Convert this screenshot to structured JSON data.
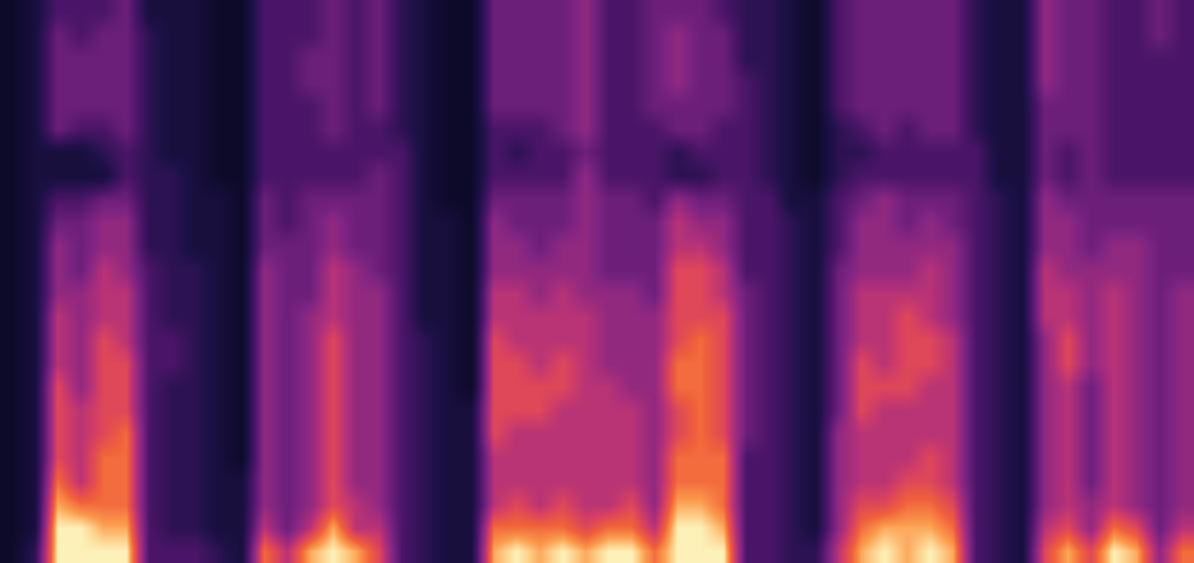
{
  "chart_data": {
    "type": "heatmap",
    "tick_labels": false,
    "zlim": [
      0,
      10
    ],
    "cells": [
      [
        0,
        0,
        0,
        0,
        0,
        0,
        0,
        0,
        0,
        0,
        0,
        0,
        0,
        0,
        0,
        0,
        0,
        0,
        0,
        0,
        0,
        0,
        0,
        0
      ],
      [
        2,
        1,
        1,
        1,
        1,
        1,
        1,
        1,
        1,
        1,
        1,
        1,
        1,
        1,
        1,
        1,
        1,
        1,
        1,
        1,
        1,
        1,
        1,
        1
      ],
      [
        10,
        10,
        9,
        8,
        7,
        7,
        7,
        7,
        6,
        6,
        6,
        5,
        5,
        5,
        4,
        3,
        1,
        1,
        4,
        4,
        4,
        4,
        4,
        3
      ],
      [
        10,
        10,
        8,
        6,
        6,
        6,
        6,
        5,
        5,
        5,
        5,
        5,
        4,
        4,
        4,
        3,
        1,
        1,
        3,
        4,
        4,
        4,
        3,
        3
      ],
      [
        10,
        9,
        8,
        8,
        8,
        7,
        7,
        7,
        7,
        7,
        6,
        6,
        6,
        5,
        5,
        4,
        1,
        2,
        3,
        4,
        4,
        4,
        4,
        3
      ],
      [
        10,
        9,
        8,
        8,
        8,
        8,
        7,
        7,
        7,
        6,
        6,
        6,
        5,
        5,
        5,
        4,
        3,
        3,
        4,
        4,
        4,
        4,
        4,
        4
      ],
      [
        3,
        3,
        3,
        3,
        3,
        3,
        3,
        3,
        3,
        3,
        3,
        3,
        3,
        2,
        2,
        2,
        2,
        2,
        2,
        2,
        2,
        2,
        2,
        1
      ],
      [
        3,
        2,
        2,
        2,
        2,
        2,
        2,
        2,
        3,
        3,
        2,
        2,
        2,
        2,
        2,
        2,
        2,
        1,
        1,
        1,
        1,
        1,
        1,
        1
      ],
      [
        3,
        2,
        2,
        2,
        2,
        2,
        2,
        2,
        2,
        2,
        2,
        2,
        2,
        1,
        1,
        1,
        1,
        1,
        1,
        1,
        1,
        1,
        1,
        1
      ],
      [
        2,
        1,
        1,
        1,
        1,
        1,
        1,
        1,
        1,
        1,
        1,
        1,
        1,
        1,
        1,
        1,
        0,
        0,
        0,
        0,
        0,
        0,
        0,
        0
      ],
      [
        1,
        1,
        1,
        1,
        0,
        0,
        0,
        0,
        0,
        0,
        0,
        0,
        0,
        0,
        0,
        0,
        0,
        0,
        0,
        0,
        0,
        0,
        0,
        0
      ],
      [
        8,
        6,
        5,
        5,
        5,
        5,
        5,
        5,
        5,
        5,
        5,
        5,
        5,
        4,
        4,
        4,
        3,
        3,
        3,
        3,
        3,
        3,
        3,
        3
      ],
      [
        6,
        4,
        4,
        4,
        4,
        4,
        4,
        4,
        4,
        4,
        4,
        4,
        4,
        4,
        3,
        3,
        3,
        3,
        3,
        3,
        3,
        3,
        3,
        3
      ],
      [
        9,
        6,
        5,
        5,
        5,
        5,
        5,
        5,
        5,
        5,
        5,
        4,
        4,
        4,
        4,
        4,
        3,
        3,
        3,
        3,
        4,
        4,
        3,
        3
      ],
      [
        10,
        9,
        7,
        7,
        7,
        7,
        7,
        7,
        7,
        7,
        6,
        6,
        6,
        5,
        5,
        4,
        3,
        3,
        4,
        4,
        4,
        4,
        4,
        4
      ],
      [
        9,
        6,
        6,
        5,
        5,
        5,
        5,
        5,
        5,
        5,
        5,
        5,
        5,
        4,
        4,
        4,
        3,
        3,
        3,
        3,
        3,
        3,
        3,
        3
      ],
      [
        7,
        6,
        5,
        5,
        5,
        5,
        5,
        5,
        5,
        5,
        5,
        5,
        4,
        4,
        4,
        4,
        4,
        3,
        3,
        4,
        4,
        4,
        4,
        4
      ],
      [
        3,
        3,
        3,
        3,
        3,
        3,
        3,
        3,
        3,
        3,
        3,
        3,
        3,
        3,
        3,
        3,
        3,
        3,
        2,
        2,
        2,
        2,
        2,
        2
      ],
      [
        2,
        2,
        2,
        2,
        2,
        2,
        2,
        2,
        2,
        2,
        1,
        1,
        1,
        1,
        1,
        1,
        1,
        1,
        1,
        1,
        1,
        1,
        1,
        1
      ],
      [
        1,
        1,
        1,
        1,
        1,
        1,
        1,
        1,
        1,
        1,
        1,
        1,
        1,
        1,
        1,
        0,
        0,
        0,
        0,
        0,
        0,
        0,
        0,
        0
      ],
      [
        1,
        1,
        1,
        1,
        1,
        1,
        1,
        0,
        0,
        0,
        0,
        0,
        0,
        0,
        0,
        0,
        0,
        0,
        0,
        0,
        0,
        0,
        0,
        0
      ],
      [
        9,
        8,
        6,
        6,
        6,
        7,
        7,
        7,
        7,
        7,
        6,
        6,
        5,
        5,
        5,
        4,
        3,
        3,
        3,
        4,
        4,
        4,
        4,
        4
      ],
      [
        10,
        8,
        7,
        6,
        6,
        6,
        7,
        7,
        7,
        6,
        6,
        6,
        5,
        5,
        4,
        4,
        3,
        2,
        3,
        4,
        4,
        4,
        4,
        4
      ],
      [
        9,
        8,
        6,
        6,
        6,
        6,
        7,
        7,
        6,
        6,
        6,
        5,
        5,
        4,
        4,
        4,
        3,
        3,
        3,
        4,
        4,
        4,
        4,
        4
      ],
      [
        10,
        8,
        7,
        6,
        6,
        6,
        6,
        7,
        7,
        6,
        6,
        6,
        5,
        5,
        4,
        4,
        3,
        3,
        4,
        4,
        4,
        4,
        4,
        4
      ],
      [
        9,
        7,
        6,
        6,
        6,
        6,
        6,
        6,
        6,
        6,
        6,
        5,
        5,
        5,
        5,
        5,
        5,
        4,
        5,
        5,
        5,
        5,
        5,
        5
      ],
      [
        10,
        8,
        6,
        6,
        6,
        6,
        6,
        6,
        5,
        5,
        5,
        5,
        4,
        4,
        4,
        4,
        3,
        3,
        3,
        3,
        3,
        3,
        3,
        3
      ],
      [
        10,
        8,
        7,
        6,
        6,
        6,
        6,
        5,
        5,
        5,
        5,
        5,
        4,
        4,
        4,
        4,
        3,
        3,
        3,
        3,
        3,
        3,
        3,
        3
      ],
      [
        8,
        6,
        5,
        5,
        5,
        5,
        5,
        5,
        5,
        5,
        5,
        4,
        4,
        4,
        4,
        3,
        3,
        3,
        3,
        4,
        4,
        4,
        4,
        4
      ],
      [
        10,
        10,
        9,
        8,
        8,
        7,
        7,
        8,
        8,
        7,
        7,
        7,
        7,
        6,
        6,
        5,
        2,
        2,
        4,
        4,
        5,
        5,
        5,
        4
      ],
      [
        10,
        10,
        9,
        8,
        8,
        8,
        8,
        8,
        8,
        8,
        7,
        7,
        7,
        6,
        5,
        4,
        2,
        3,
        4,
        4,
        4,
        4,
        4,
        4
      ],
      [
        10,
        9,
        8,
        8,
        8,
        7,
        7,
        7,
        7,
        7,
        7,
        6,
        6,
        5,
        5,
        4,
        3,
        3,
        3,
        4,
        4,
        4,
        4,
        3
      ],
      [
        3,
        3,
        3,
        3,
        3,
        4,
        4,
        4,
        4,
        4,
        4,
        4,
        3,
        3,
        3,
        3,
        3,
        3,
        3,
        3,
        3,
        2,
        2,
        2
      ],
      [
        3,
        3,
        3,
        3,
        3,
        3,
        3,
        3,
        3,
        3,
        3,
        3,
        3,
        3,
        3,
        3,
        2,
        2,
        2,
        2,
        2,
        2,
        2,
        2
      ],
      [
        2,
        2,
        2,
        2,
        2,
        2,
        2,
        2,
        2,
        2,
        2,
        2,
        2,
        2,
        2,
        1,
        1,
        1,
        1,
        1,
        1,
        1,
        1,
        1
      ],
      [
        2,
        1,
        1,
        1,
        1,
        1,
        1,
        1,
        1,
        1,
        1,
        1,
        1,
        1,
        1,
        1,
        0,
        0,
        0,
        0,
        0,
        0,
        0,
        0
      ],
      [
        6,
        5,
        5,
        5,
        5,
        5,
        4,
        4,
        4,
        4,
        4,
        4,
        4,
        3,
        3,
        3,
        2,
        2,
        2,
        3,
        3,
        3,
        3,
        3
      ],
      [
        9,
        8,
        7,
        6,
        6,
        6,
        7,
        7,
        7,
        6,
        6,
        6,
        5,
        5,
        5,
        4,
        3,
        2,
        3,
        4,
        4,
        4,
        4,
        4
      ],
      [
        10,
        9,
        7,
        6,
        6,
        6,
        6,
        7,
        6,
        6,
        6,
        6,
        5,
        5,
        5,
        5,
        3,
        3,
        4,
        4,
        4,
        4,
        4,
        4
      ],
      [
        9,
        9,
        8,
        7,
        6,
        6,
        6,
        7,
        7,
        7,
        7,
        6,
        5,
        5,
        4,
        4,
        3,
        3,
        3,
        4,
        4,
        4,
        4,
        4
      ],
      [
        10,
        9,
        8,
        7,
        7,
        6,
        6,
        6,
        7,
        7,
        6,
        6,
        6,
        5,
        5,
        4,
        3,
        3,
        4,
        4,
        4,
        4,
        4,
        4
      ],
      [
        9,
        8,
        7,
        6,
        6,
        6,
        6,
        6,
        6,
        6,
        5,
        5,
        5,
        5,
        4,
        4,
        3,
        3,
        4,
        4,
        4,
        4,
        4,
        4
      ],
      [
        3,
        3,
        3,
        3,
        3,
        3,
        3,
        3,
        3,
        3,
        3,
        3,
        3,
        3,
        3,
        3,
        3,
        3,
        2,
        2,
        2,
        2,
        2,
        2
      ],
      [
        2,
        2,
        2,
        2,
        2,
        2,
        2,
        2,
        2,
        2,
        2,
        2,
        2,
        2,
        2,
        2,
        1,
        1,
        1,
        1,
        1,
        1,
        1,
        1
      ],
      [
        1,
        1,
        1,
        1,
        1,
        1,
        1,
        1,
        1,
        1,
        1,
        1,
        1,
        1,
        1,
        1,
        1,
        1,
        1,
        1,
        1,
        1,
        1,
        1
      ],
      [
        7,
        6,
        5,
        5,
        5,
        5,
        5,
        5,
        5,
        5,
        6,
        6,
        6,
        5,
        5,
        5,
        4,
        4,
        4,
        4,
        5,
        5,
        5,
        5
      ],
      [
        9,
        7,
        6,
        6,
        6,
        6,
        6,
        6,
        7,
        7,
        6,
        6,
        5,
        5,
        5,
        4,
        3,
        3,
        4,
        4,
        4,
        4,
        4,
        4
      ],
      [
        7,
        5,
        5,
        4,
        4,
        4,
        4,
        4,
        5,
        5,
        5,
        5,
        5,
        4,
        4,
        4,
        4,
        4,
        4,
        4,
        4,
        4,
        4,
        4
      ],
      [
        10,
        8,
        6,
        6,
        6,
        6,
        6,
        6,
        6,
        6,
        6,
        6,
        5,
        5,
        4,
        4,
        3,
        3,
        3,
        3,
        3,
        3,
        3,
        3
      ],
      [
        9,
        7,
        5,
        5,
        5,
        5,
        5,
        5,
        5,
        5,
        5,
        5,
        5,
        5,
        4,
        4,
        3,
        3,
        3,
        3,
        3,
        3,
        3,
        3
      ],
      [
        5,
        4,
        4,
        4,
        4,
        4,
        4,
        4,
        4,
        4,
        4,
        4,
        4,
        4,
        4,
        4,
        3,
        3,
        3,
        3,
        3,
        3,
        4,
        4
      ],
      [
        8,
        6,
        5,
        5,
        5,
        5,
        5,
        5,
        5,
        5,
        5,
        5,
        4,
        4,
        4,
        4,
        3,
        3,
        3,
        3,
        3,
        3,
        3,
        3
      ]
    ]
  }
}
